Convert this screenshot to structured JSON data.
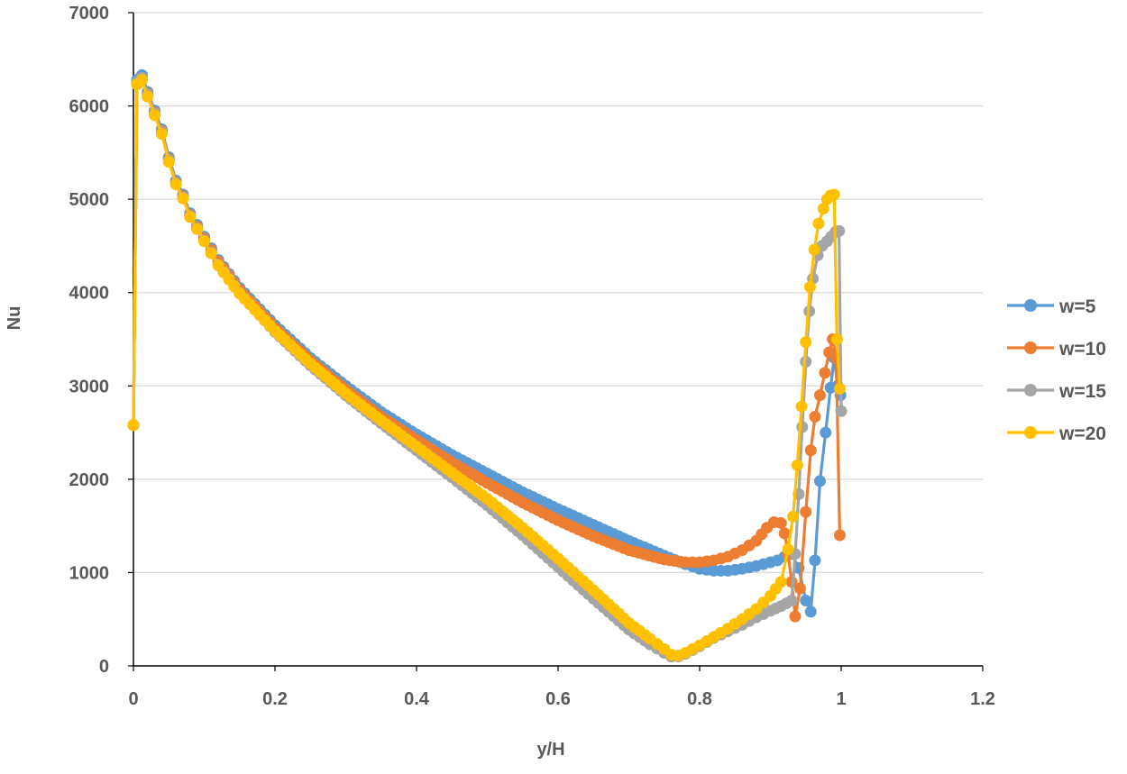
{
  "chart_data": {
    "type": "line",
    "title": "",
    "xlabel": "y/H",
    "ylabel": "Nu",
    "xlim": [
      0,
      1.2
    ],
    "ylim": [
      0,
      7000
    ],
    "xticks": [
      0,
      0.2,
      0.4,
      0.6,
      0.8,
      1,
      1.2
    ],
    "xtick_labels": [
      "0",
      "0.2",
      "0.4",
      "0.6",
      "0.8",
      "1",
      "1.2"
    ],
    "yticks": [
      0,
      1000,
      2000,
      3000,
      4000,
      5000,
      6000,
      7000
    ],
    "ytick_labels": [
      "0",
      "1000",
      "2000",
      "3000",
      "4000",
      "5000",
      "6000",
      "7000"
    ],
    "grid": "horizontal",
    "legend_position": "right",
    "series": [
      {
        "name": "w=5",
        "color": "#5B9BD5",
        "x": [
          0,
          0.005,
          0.012,
          0.02,
          0.03,
          0.04,
          0.05,
          0.06,
          0.07,
          0.08,
          0.1,
          0.12,
          0.15,
          0.2,
          0.25,
          0.3,
          0.35,
          0.4,
          0.45,
          0.5,
          0.55,
          0.6,
          0.65,
          0.7,
          0.75,
          0.78,
          0.8,
          0.82,
          0.84,
          0.86,
          0.88,
          0.9,
          0.91,
          0.92,
          0.93,
          0.94,
          0.95,
          0.957,
          0.963,
          0.97,
          0.978,
          0.985,
          0.99,
          0.995,
          0.999
        ],
        "y": [
          2580,
          6280,
          6330,
          6150,
          5950,
          5750,
          5450,
          5200,
          5050,
          4850,
          4600,
          4350,
          4050,
          3650,
          3300,
          3000,
          2720,
          2480,
          2260,
          2060,
          1860,
          1680,
          1510,
          1340,
          1180,
          1090,
          1040,
          1020,
          1020,
          1040,
          1070,
          1110,
          1130,
          1170,
          1200,
          1050,
          700,
          580,
          1130,
          1980,
          2500,
          2980,
          3300,
          3000,
          2900
        ]
      },
      {
        "name": "w=10",
        "color": "#ED7D31",
        "x": [
          0,
          0.005,
          0.012,
          0.02,
          0.03,
          0.04,
          0.05,
          0.06,
          0.07,
          0.08,
          0.1,
          0.12,
          0.15,
          0.2,
          0.25,
          0.3,
          0.35,
          0.4,
          0.45,
          0.5,
          0.55,
          0.6,
          0.65,
          0.7,
          0.75,
          0.78,
          0.8,
          0.82,
          0.84,
          0.86,
          0.88,
          0.895,
          0.905,
          0.915,
          0.92,
          0.925,
          0.93,
          0.935,
          0.942,
          0.95,
          0.957,
          0.963,
          0.97,
          0.977,
          0.983,
          0.988,
          0.993,
          0.998
        ],
        "y": [
          2580,
          6250,
          6300,
          6130,
          5930,
          5730,
          5430,
          5180,
          5030,
          4830,
          4580,
          4330,
          4030,
          3620,
          3270,
          2960,
          2670,
          2420,
          2180,
          1960,
          1750,
          1560,
          1390,
          1240,
          1140,
          1110,
          1110,
          1130,
          1170,
          1240,
          1340,
          1480,
          1540,
          1530,
          1420,
          1200,
          900,
          530,
          830,
          1650,
          2310,
          2670,
          2900,
          3140,
          3360,
          3500,
          3300,
          1400
        ]
      },
      {
        "name": "w=15",
        "color": "#A5A5A5",
        "x": [
          0,
          0.005,
          0.012,
          0.02,
          0.03,
          0.04,
          0.05,
          0.06,
          0.07,
          0.08,
          0.1,
          0.12,
          0.15,
          0.2,
          0.25,
          0.3,
          0.35,
          0.4,
          0.45,
          0.5,
          0.55,
          0.6,
          0.65,
          0.7,
          0.73,
          0.75,
          0.76,
          0.77,
          0.78,
          0.8,
          0.82,
          0.84,
          0.86,
          0.88,
          0.9,
          0.915,
          0.93,
          0.935,
          0.94,
          0.945,
          0.95,
          0.955,
          0.96,
          0.967,
          0.973,
          0.98,
          0.986,
          0.992,
          0.997,
          1.0
        ],
        "y": [
          2580,
          6250,
          6300,
          6120,
          5920,
          5720,
          5420,
          5170,
          5020,
          4820,
          4560,
          4300,
          4000,
          3580,
          3220,
          2900,
          2600,
          2310,
          2020,
          1720,
          1400,
          1060,
          720,
          390,
          230,
          140,
          100,
          100,
          130,
          210,
          300,
          370,
          440,
          520,
          590,
          640,
          700,
          1200,
          1840,
          2560,
          3260,
          3800,
          4150,
          4400,
          4500,
          4550,
          4600,
          4650,
          4660,
          2730
        ]
      },
      {
        "name": "w=20",
        "color": "#FFC000",
        "x": [
          0,
          0.005,
          0.012,
          0.02,
          0.03,
          0.04,
          0.05,
          0.06,
          0.07,
          0.08,
          0.1,
          0.12,
          0.15,
          0.2,
          0.25,
          0.3,
          0.35,
          0.4,
          0.45,
          0.5,
          0.55,
          0.6,
          0.65,
          0.7,
          0.73,
          0.75,
          0.76,
          0.77,
          0.78,
          0.8,
          0.82,
          0.84,
          0.86,
          0.88,
          0.9,
          0.915,
          0.925,
          0.932,
          0.938,
          0.944,
          0.95,
          0.956,
          0.962,
          0.968,
          0.975,
          0.98,
          0.985,
          0.99,
          0.994,
          0.998
        ],
        "y": [
          2580,
          6230,
          6280,
          6100,
          5900,
          5700,
          5400,
          5160,
          5010,
          4810,
          4550,
          4290,
          3990,
          3590,
          3240,
          2920,
          2630,
          2350,
          2070,
          1790,
          1480,
          1150,
          810,
          460,
          290,
          180,
          120,
          110,
          140,
          220,
          310,
          400,
          500,
          610,
          750,
          900,
          1250,
          1600,
          2150,
          2780,
          3470,
          4060,
          4460,
          4740,
          4900,
          5000,
          5040,
          5050,
          3500,
          2970
        ]
      }
    ]
  }
}
